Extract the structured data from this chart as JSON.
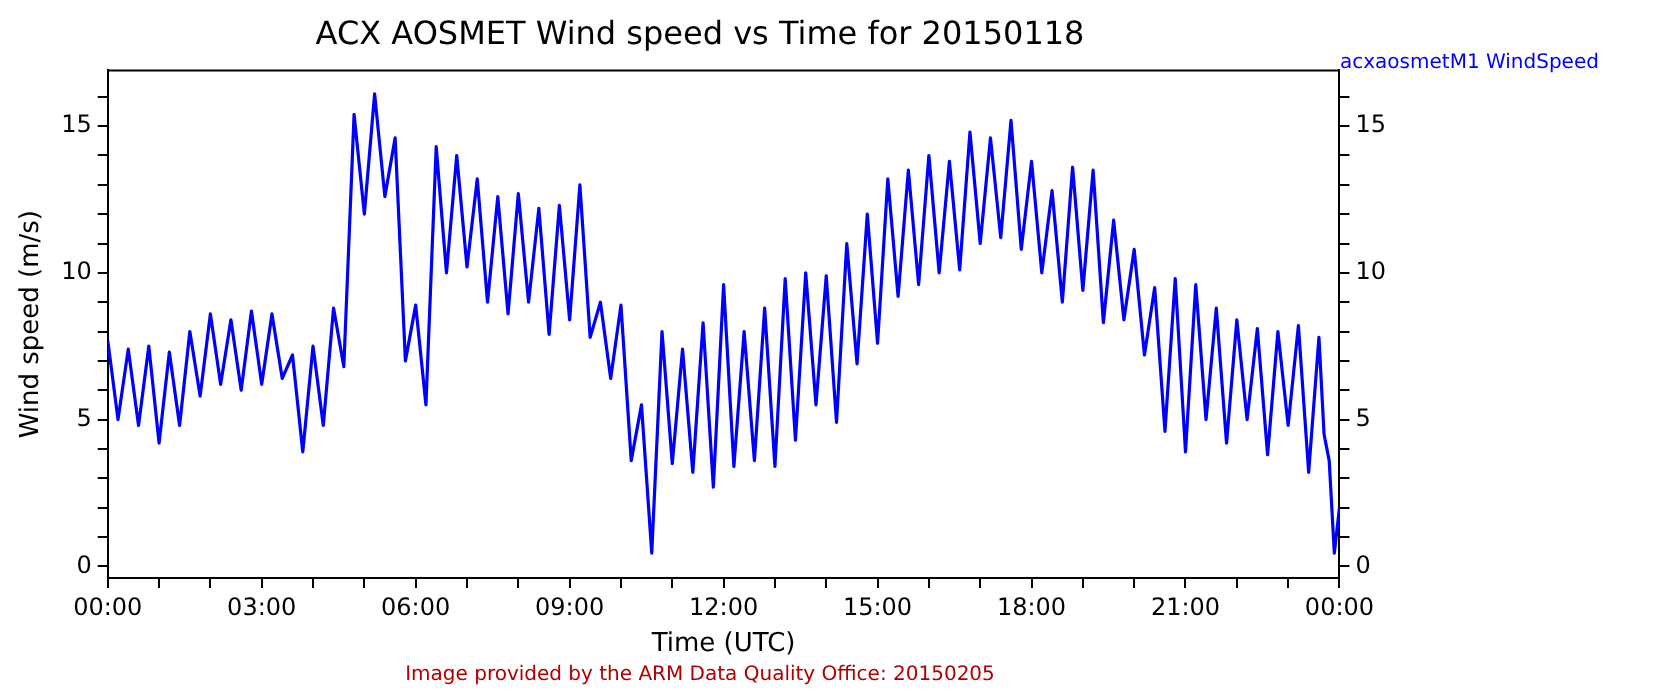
{
  "chart_data": {
    "type": "line",
    "title": "ACX AOSMET Wind speed vs Time for 20150118",
    "xlabel": "Time (UTC)",
    "ylabel": "Wind speed (m/s)",
    "xlim": [
      0,
      24
    ],
    "xticks": [
      {
        "value": 0,
        "label": "00:00"
      },
      {
        "value": 1,
        "label": null
      },
      {
        "value": 2,
        "label": null
      },
      {
        "value": 3,
        "label": "03:00"
      },
      {
        "value": 4,
        "label": null
      },
      {
        "value": 5,
        "label": null
      },
      {
        "value": 6,
        "label": "06:00"
      },
      {
        "value": 7,
        "label": null
      },
      {
        "value": 8,
        "label": null
      },
      {
        "value": 9,
        "label": "09:00"
      },
      {
        "value": 10,
        "label": null
      },
      {
        "value": 11,
        "label": null
      },
      {
        "value": 12,
        "label": "12:00"
      },
      {
        "value": 13,
        "label": null
      },
      {
        "value": 14,
        "label": null
      },
      {
        "value": 15,
        "label": "15:00"
      },
      {
        "value": 16,
        "label": null
      },
      {
        "value": 17,
        "label": null
      },
      {
        "value": 18,
        "label": "18:00"
      },
      {
        "value": 19,
        "label": null
      },
      {
        "value": 20,
        "label": null
      },
      {
        "value": 21,
        "label": "21:00"
      },
      {
        "value": 22,
        "label": null
      },
      {
        "value": 23,
        "label": null
      },
      {
        "value": 24,
        "label": "00:00"
      }
    ],
    "ylim": [
      -0.4,
      16.9
    ],
    "yticks": [
      0,
      {
        "value": 1,
        "label": null
      },
      {
        "value": 2,
        "label": null
      },
      {
        "value": 3,
        "label": null
      },
      {
        "value": 4,
        "label": null
      },
      5,
      {
        "value": 6,
        "label": null
      },
      {
        "value": 7,
        "label": null
      },
      {
        "value": 8,
        "label": null
      },
      {
        "value": 9,
        "label": null
      },
      10,
      {
        "value": 11,
        "label": null
      },
      {
        "value": 12,
        "label": null
      },
      {
        "value": 13,
        "label": null
      },
      {
        "value": 14,
        "label": null
      },
      15,
      {
        "value": 16,
        "label": null
      }
    ],
    "y2lim": [
      -0.4,
      16.9
    ],
    "y2ticks": [
      0,
      {
        "value": 1,
        "label": null
      },
      {
        "value": 2,
        "label": null
      },
      {
        "value": 3,
        "label": null
      },
      {
        "value": 4,
        "label": null
      },
      5,
      {
        "value": 6,
        "label": null
      },
      {
        "value": 7,
        "label": null
      },
      {
        "value": 8,
        "label": null
      },
      {
        "value": 9,
        "label": null
      },
      10,
      {
        "value": 11,
        "label": null
      },
      {
        "value": 12,
        "label": null
      },
      {
        "value": 13,
        "label": null
      },
      {
        "value": 14,
        "label": null
      },
      15,
      {
        "value": 16,
        "label": null
      }
    ],
    "grid": false,
    "legend": "top right",
    "marker": "none",
    "line_style": "solid",
    "annotations": [
      "Image provided by the ARM Data Quality Office: 20150205"
    ],
    "series": [
      {
        "name": "acxaosmetM1 WindSpeed",
        "color": "#0000ff",
        "x": [
          0,
          0.2,
          0.4,
          0.6,
          0.8,
          1.0,
          1.2,
          1.4,
          1.6,
          1.8,
          2.0,
          2.2,
          2.4,
          2.6,
          2.8,
          3.0,
          3.2,
          3.4,
          3.6,
          3.8,
          4.0,
          4.2,
          4.4,
          4.6,
          4.8,
          5.0,
          5.2,
          5.4,
          5.6,
          5.8,
          6.0,
          6.2,
          6.4,
          6.6,
          6.8,
          7.0,
          7.2,
          7.4,
          7.6,
          7.8,
          8.0,
          8.2,
          8.4,
          8.6,
          8.8,
          9.0,
          9.2,
          9.4,
          9.6,
          9.8,
          10.0,
          10.2,
          10.4,
          10.6,
          10.8,
          11.0,
          11.2,
          11.4,
          11.6,
          11.8,
          12.0,
          12.2,
          12.4,
          12.6,
          12.8,
          13.0,
          13.2,
          13.4,
          13.6,
          13.8,
          14.0,
          14.2,
          14.4,
          14.6,
          14.8,
          15.0,
          15.2,
          15.4,
          15.6,
          15.8,
          16.0,
          16.2,
          16.4,
          16.6,
          16.8,
          17.0,
          17.2,
          17.4,
          17.6,
          17.8,
          18.0,
          18.2,
          18.4,
          18.6,
          18.8,
          19.0,
          19.2,
          19.4,
          19.6,
          19.8,
          20.0,
          20.2,
          20.4,
          20.6,
          20.8,
          21.0,
          21.2,
          21.4,
          21.6,
          21.8,
          22.0,
          22.2,
          22.4,
          22.6,
          22.8,
          23.0,
          23.2,
          23.4,
          23.6,
          23.7,
          23.8,
          23.9,
          24.0
        ],
        "values": [
          7.7,
          5.0,
          7.4,
          4.8,
          7.5,
          4.2,
          7.3,
          4.8,
          8.0,
          5.8,
          8.6,
          6.2,
          8.4,
          6.0,
          8.7,
          6.2,
          8.6,
          6.4,
          7.2,
          3.9,
          7.5,
          4.8,
          8.8,
          6.8,
          15.4,
          12.0,
          16.1,
          12.6,
          14.6,
          7.0,
          8.9,
          5.5,
          14.3,
          10.0,
          14.0,
          10.2,
          13.2,
          9.0,
          12.6,
          8.6,
          12.7,
          9.0,
          12.2,
          7.9,
          12.3,
          8.4,
          13.0,
          7.8,
          9.0,
          6.4,
          8.9,
          3.6,
          5.5,
          0.45,
          8.0,
          3.5,
          7.4,
          3.2,
          8.3,
          2.7,
          9.6,
          3.4,
          8.0,
          3.6,
          8.8,
          3.4,
          9.8,
          4.3,
          10.0,
          5.5,
          9.9,
          4.9,
          11.0,
          6.9,
          12.0,
          7.6,
          13.2,
          9.2,
          13.5,
          9.6,
          14.0,
          10.0,
          13.8,
          10.1,
          14.8,
          11.0,
          14.6,
          11.2,
          15.2,
          10.8,
          13.8,
          10.0,
          12.8,
          9.0,
          13.6,
          9.4,
          13.5,
          8.3,
          11.8,
          8.4,
          10.8,
          7.2,
          9.5,
          4.6,
          9.8,
          3.9,
          9.6,
          5.0,
          8.8,
          4.2,
          8.4,
          5.0,
          8.1,
          3.8,
          8.0,
          4.8,
          8.2,
          3.2,
          7.8,
          4.5,
          3.6,
          0.45,
          2.0
        ]
      }
    ]
  }
}
